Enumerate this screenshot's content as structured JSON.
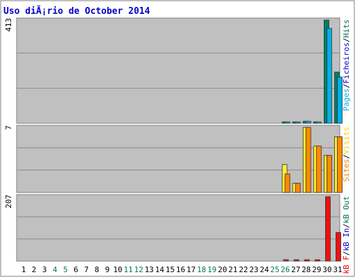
{
  "chart_data": {
    "type": "bar",
    "title": "Uso diÃ¡rio de October 2014",
    "days": [
      "1",
      "2",
      "3",
      "4",
      "5",
      "6",
      "7",
      "8",
      "9",
      "10",
      "11",
      "12",
      "13",
      "14",
      "15",
      "16",
      "17",
      "18",
      "19",
      "20",
      "21",
      "22",
      "23",
      "24",
      "25",
      "26",
      "27",
      "28",
      "29",
      "30",
      "31"
    ],
    "weekend_days": [
      "4",
      "5",
      "11",
      "12",
      "18",
      "19",
      "25",
      "26"
    ],
    "grid": true,
    "panels": [
      {
        "name": "top",
        "axis_label": "413",
        "ylim": [
          0,
          413
        ],
        "legend": [
          {
            "text": "Pages",
            "color": "#00b0e8"
          },
          {
            "text": "/",
            "color": "#000000"
          },
          {
            "text": "Ficheiros",
            "color": "#0000cc"
          },
          {
            "text": "/",
            "color": "#000000"
          },
          {
            "text": "Hits",
            "color": "#007050"
          }
        ],
        "series": [
          {
            "name": "Hits",
            "color": "#008060",
            "values": [
              0,
              0,
              0,
              0,
              0,
              0,
              0,
              0,
              0,
              0,
              0,
              0,
              0,
              0,
              0,
              0,
              0,
              0,
              0,
              0,
              0,
              0,
              0,
              0,
              0,
              5,
              3,
              8,
              4,
              413,
              205
            ]
          },
          {
            "name": "Pages",
            "color": "#00b0e8",
            "values": [
              0,
              0,
              0,
              0,
              0,
              0,
              0,
              0,
              0,
              0,
              0,
              0,
              0,
              0,
              0,
              0,
              0,
              0,
              0,
              0,
              0,
              0,
              0,
              0,
              0,
              5,
              3,
              8,
              4,
              380,
              185
            ]
          }
        ]
      },
      {
        "name": "middle",
        "axis_label": "7",
        "ylim": [
          0,
          7
        ],
        "legend": [
          {
            "text": "Sites",
            "color": "#ff8000"
          },
          {
            "text": "/",
            "color": "#000000"
          },
          {
            "text": "Visits",
            "color": "#ffd000"
          }
        ],
        "series": [
          {
            "name": "Visits",
            "color": "#ffee30",
            "values": [
              0,
              0,
              0,
              0,
              0,
              0,
              0,
              0,
              0,
              0,
              0,
              0,
              0,
              0,
              0,
              0,
              0,
              0,
              0,
              0,
              0,
              0,
              0,
              0,
              0,
              3,
              1,
              7,
              5,
              4,
              6
            ]
          },
          {
            "name": "Sites",
            "color": "#ff8a00",
            "values": [
              0,
              0,
              0,
              0,
              0,
              0,
              0,
              0,
              0,
              0,
              0,
              0,
              0,
              0,
              0,
              0,
              0,
              0,
              0,
              0,
              0,
              0,
              0,
              0,
              0,
              2,
              1,
              7,
              5,
              4,
              6
            ]
          }
        ]
      },
      {
        "name": "bottom",
        "axis_label": "207",
        "ylim": [
          0,
          207
        ],
        "legend": [
          {
            "text": "kB F",
            "color": "#e00000"
          },
          {
            "text": "/",
            "color": "#000000"
          },
          {
            "text": "kB In",
            "color": "#0000cc"
          },
          {
            "text": "/",
            "color": "#000000"
          },
          {
            "text": "kB Out",
            "color": "#007050"
          }
        ],
        "series": [
          {
            "name": "kB F",
            "color": "#ee1111",
            "values": [
              0,
              0,
              0,
              0,
              0,
              0,
              0,
              0,
              0,
              0,
              0,
              0,
              0,
              0,
              0,
              0,
              0,
              0,
              0,
              0,
              0,
              0,
              0,
              0,
              0,
              2,
              2,
              3,
              2,
              207,
              92
            ]
          }
        ]
      }
    ]
  }
}
